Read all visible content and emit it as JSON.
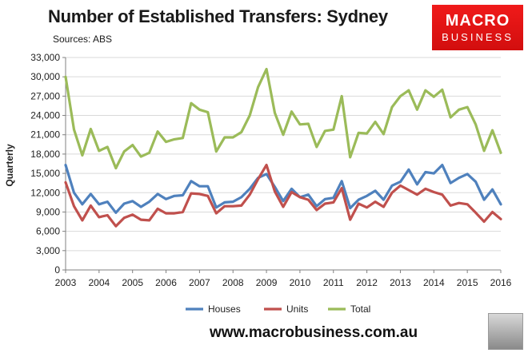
{
  "header": {
    "title": "Number of Established Transfers: Sydney",
    "subtitle": "Sources: ABS"
  },
  "logo": {
    "line1": "MACRO",
    "line2": "BUSINESS",
    "color": "#e31414"
  },
  "footer": {
    "url": "www.macrobusiness.com.au"
  },
  "chart_data": {
    "type": "line",
    "title": "Number of Established Transfers: Sydney",
    "xlabel": "",
    "ylabel": "Quarterly",
    "xlim": [
      2003,
      2016
    ],
    "ylim": [
      0,
      33000
    ],
    "y_ticks": [
      0,
      3000,
      6000,
      9000,
      12000,
      15000,
      18000,
      21000,
      24000,
      27000,
      30000,
      33000
    ],
    "y_tick_labels": [
      "0",
      "3,000",
      "6,000",
      "9,000",
      "12,000",
      "15,000",
      "18,000",
      "21,000",
      "24,000",
      "27,000",
      "30,000",
      "33,000"
    ],
    "x_ticks": [
      2003,
      2004,
      2005,
      2006,
      2007,
      2008,
      2009,
      2010,
      2011,
      2012,
      2013,
      2014,
      2015,
      2016
    ],
    "x_tick_labels": [
      "2003",
      "2004",
      "2005",
      "2006",
      "2007",
      "2008",
      "2009",
      "2010",
      "2011",
      "2012",
      "2013",
      "2014",
      "2015",
      "2016"
    ],
    "grid": true,
    "legend_position": "bottom",
    "x": [
      2003.0,
      2003.25,
      2003.5,
      2003.75,
      2004.0,
      2004.25,
      2004.5,
      2004.75,
      2005.0,
      2005.25,
      2005.5,
      2005.75,
      2006.0,
      2006.25,
      2006.5,
      2006.75,
      2007.0,
      2007.25,
      2007.5,
      2007.75,
      2008.0,
      2008.25,
      2008.5,
      2008.75,
      2009.0,
      2009.25,
      2009.5,
      2009.75,
      2010.0,
      2010.25,
      2010.5,
      2010.75,
      2011.0,
      2011.25,
      2011.5,
      2011.75,
      2012.0,
      2012.25,
      2012.5,
      2012.75,
      2013.0,
      2013.25,
      2013.5,
      2013.75,
      2014.0,
      2014.25,
      2014.5,
      2014.75,
      2015.0,
      2015.25,
      2015.5,
      2015.75,
      2016.0
    ],
    "series": [
      {
        "name": "Houses",
        "color": "#4f81bd",
        "values": [
          16300,
          12000,
          10200,
          11800,
          10200,
          10600,
          8900,
          10300,
          10700,
          9800,
          10600,
          11800,
          11000,
          11500,
          11600,
          13800,
          13000,
          13000,
          9700,
          10500,
          10600,
          11300,
          12600,
          14300,
          14900,
          12900,
          10700,
          12600,
          11300,
          11700,
          9900,
          11000,
          11200,
          13800,
          9600,
          10900,
          11500,
          12300,
          10900,
          13100,
          13700,
          15600,
          13300,
          15200,
          15000,
          16300,
          13500,
          14300,
          14900,
          13700,
          10900,
          12500,
          10200
        ]
      },
      {
        "name": "Units",
        "color": "#c0504d",
        "values": [
          13600,
          9900,
          7700,
          10000,
          8200,
          8500,
          6800,
          8100,
          8600,
          7800,
          7700,
          9500,
          8800,
          8800,
          9000,
          11900,
          11800,
          11500,
          8800,
          9900,
          9900,
          10000,
          11700,
          14100,
          16300,
          12200,
          9800,
          12100,
          11300,
          10900,
          9300,
          10300,
          10500,
          12700,
          7800,
          10300,
          9700,
          10600,
          9800,
          12000,
          13100,
          12400,
          11700,
          12600,
          12100,
          11700,
          10000,
          10400,
          10200,
          8900,
          7500,
          9000,
          7900
        ]
      },
      {
        "name": "Total",
        "color": "#9bbb59",
        "values": [
          30000,
          21800,
          17800,
          21900,
          18500,
          19100,
          15800,
          18400,
          19400,
          17600,
          18200,
          21500,
          19900,
          20300,
          20500,
          25900,
          24900,
          24500,
          18400,
          20600,
          20600,
          21400,
          24000,
          28400,
          31200,
          24400,
          21000,
          24600,
          22600,
          22700,
          19100,
          21600,
          21800,
          27000,
          17500,
          21300,
          21200,
          23000,
          21100,
          25300,
          27000,
          27900,
          24900,
          27900,
          26900,
          28000,
          23700,
          24900,
          25300,
          22600,
          18500,
          21700,
          18200
        ]
      }
    ]
  }
}
